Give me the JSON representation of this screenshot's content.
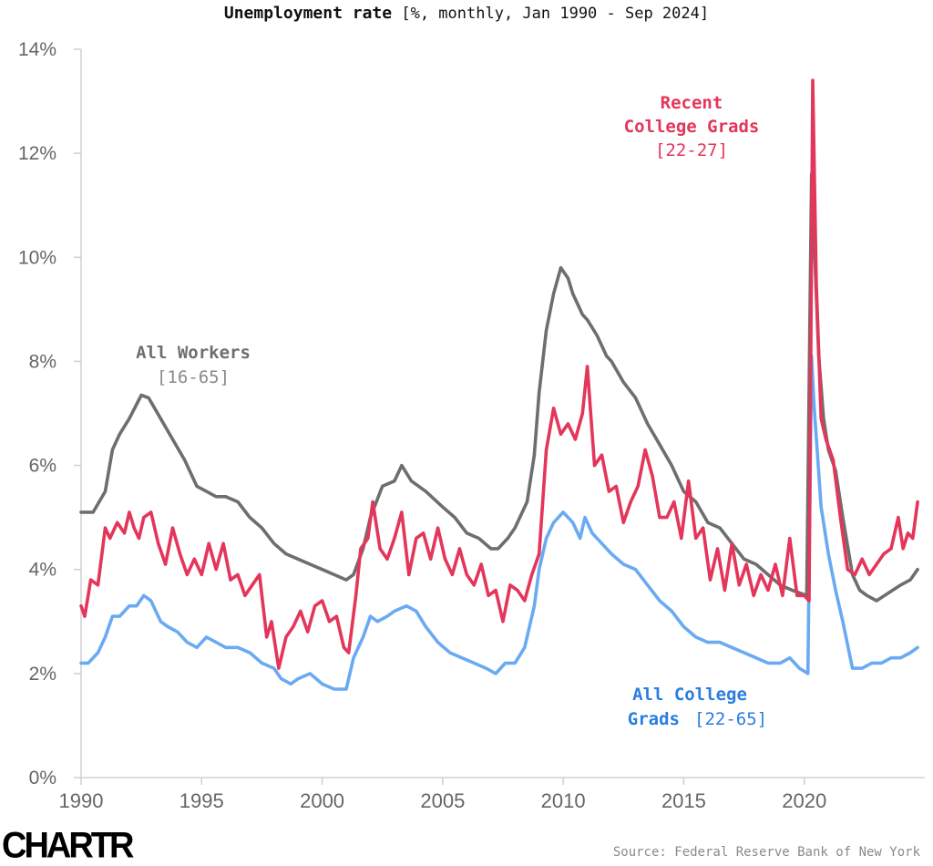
{
  "chart_data": {
    "type": "line",
    "title": "Unemployment rate",
    "subtitle": "[%, monthly, Jan 1990 - Sep 2024]",
    "xlabel": "",
    "ylabel": "",
    "xlim": [
      1990,
      2024.75
    ],
    "ylim": [
      0,
      14
    ],
    "grid": false,
    "y_ticks": [
      0,
      2,
      4,
      6,
      8,
      10,
      12,
      14
    ],
    "y_tick_labels": [
      "0%",
      "2%",
      "4%",
      "6%",
      "8%",
      "10%",
      "12%",
      "14%"
    ],
    "x_ticks": [
      1990,
      1995,
      2000,
      2005,
      2010,
      2015,
      2020
    ],
    "x_tick_labels": [
      "1990",
      "1995",
      "2000",
      "2005",
      "2010",
      "2015",
      "2020"
    ],
    "source": "Source: Federal Reserve Bank of New York",
    "brand": "CHARTR",
    "series": [
      {
        "name": "All Workers",
        "label_line1": "All Workers",
        "label_line2": "[16-65]",
        "color": "#6e6e6e",
        "x": [
          1990,
          1990.5,
          1991,
          1991.3,
          1991.6,
          1992,
          1992.5,
          1992.8,
          1993.3,
          1993.8,
          1994.3,
          1994.8,
          1995.2,
          1995.6,
          1996,
          1996.5,
          1997,
          1997.5,
          1998,
          1998.5,
          1999,
          1999.5,
          2000,
          2000.5,
          2001,
          2001.3,
          2001.7,
          2002,
          2002.5,
          2003,
          2003.3,
          2003.7,
          2004.3,
          2005,
          2005.5,
          2006,
          2006.5,
          2007,
          2007.3,
          2007.7,
          2008,
          2008.5,
          2008.8,
          2009,
          2009.3,
          2009.6,
          2009.9,
          2010.2,
          2010.4,
          2010.8,
          2011,
          2011.4,
          2011.8,
          2012,
          2012.5,
          2013,
          2013.5,
          2014,
          2014.5,
          2015,
          2015.5,
          2016,
          2016.5,
          2017,
          2017.5,
          2018,
          2018.5,
          2019,
          2019.5,
          2020.1,
          2020.3,
          2020.35,
          2020.6,
          2020.8,
          2021,
          2021.3,
          2021.6,
          2022,
          2022.3,
          2022.6,
          2023,
          2023.5,
          2024,
          2024.4,
          2024.7
        ],
        "values": [
          5.1,
          5.1,
          5.5,
          6.3,
          6.6,
          6.9,
          7.35,
          7.3,
          6.9,
          6.5,
          6.1,
          5.6,
          5.5,
          5.4,
          5.4,
          5.3,
          5.0,
          4.8,
          4.5,
          4.3,
          4.2,
          4.1,
          4.0,
          3.9,
          3.8,
          3.9,
          4.4,
          5.0,
          5.6,
          5.7,
          6.0,
          5.7,
          5.5,
          5.2,
          5.0,
          4.7,
          4.6,
          4.4,
          4.4,
          4.6,
          4.8,
          5.3,
          6.2,
          7.4,
          8.6,
          9.3,
          9.8,
          9.6,
          9.3,
          8.9,
          8.8,
          8.5,
          8.1,
          8.0,
          7.6,
          7.3,
          6.8,
          6.4,
          6.0,
          5.5,
          5.3,
          4.9,
          4.8,
          4.5,
          4.2,
          4.1,
          3.9,
          3.7,
          3.6,
          3.5,
          11.6,
          11.0,
          8.1,
          6.9,
          6.3,
          5.9,
          5.0,
          3.9,
          3.6,
          3.5,
          3.4,
          3.55,
          3.7,
          3.8,
          4.0
        ]
      },
      {
        "name": "Recent College Grads",
        "label_line1": "Recent",
        "label_line2": "College Grads",
        "label_line3": "[22-27]",
        "color": "#e3365a",
        "x": [
          1990,
          1990.15,
          1990.4,
          1990.7,
          1991,
          1991.2,
          1991.5,
          1991.8,
          1992,
          1992.2,
          1992.4,
          1992.6,
          1992.9,
          1993.2,
          1993.5,
          1993.8,
          1994.1,
          1994.4,
          1994.7,
          1995,
          1995.3,
          1995.6,
          1995.9,
          1996.2,
          1996.5,
          1996.8,
          1997.1,
          1997.4,
          1997.7,
          1997.9,
          1998.2,
          1998.5,
          1998.8,
          1999.1,
          1999.4,
          1999.7,
          2000,
          2000.3,
          2000.6,
          2000.9,
          2001.1,
          2001.4,
          2001.6,
          2001.9,
          2002.1,
          2002.4,
          2002.7,
          2003,
          2003.3,
          2003.6,
          2003.9,
          2004.2,
          2004.5,
          2004.8,
          2005.1,
          2005.4,
          2005.7,
          2006,
          2006.3,
          2006.6,
          2006.9,
          2007.2,
          2007.5,
          2007.8,
          2008.1,
          2008.4,
          2008.7,
          2009,
          2009.3,
          2009.6,
          2009.9,
          2010.2,
          2010.5,
          2010.8,
          2011.0,
          2011.3,
          2011.6,
          2011.9,
          2012.2,
          2012.5,
          2012.8,
          2013.1,
          2013.4,
          2013.7,
          2014.0,
          2014.3,
          2014.6,
          2014.9,
          2015.2,
          2015.5,
          2015.8,
          2016.1,
          2016.4,
          2016.7,
          2017,
          2017.3,
          2017.6,
          2017.9,
          2018.2,
          2018.5,
          2018.8,
          2019.1,
          2019.4,
          2019.7,
          2020.0,
          2020.2,
          2020.35,
          2020.5,
          2020.7,
          2020.9,
          2021.2,
          2021.5,
          2021.8,
          2022.1,
          2022.4,
          2022.7,
          2023,
          2023.3,
          2023.6,
          2023.9,
          2024.1,
          2024.3,
          2024.5,
          2024.7
        ],
        "values": [
          3.3,
          3.1,
          3.8,
          3.7,
          4.8,
          4.6,
          4.9,
          4.7,
          5.1,
          4.8,
          4.6,
          5.0,
          5.1,
          4.5,
          4.1,
          4.8,
          4.3,
          3.9,
          4.2,
          3.9,
          4.5,
          4.0,
          4.5,
          3.8,
          3.9,
          3.5,
          3.7,
          3.9,
          2.7,
          3.0,
          2.1,
          2.7,
          2.9,
          3.2,
          2.8,
          3.3,
          3.4,
          3.0,
          3.1,
          2.5,
          2.4,
          3.5,
          4.4,
          4.6,
          5.3,
          4.4,
          4.2,
          4.6,
          5.1,
          3.9,
          4.6,
          4.7,
          4.2,
          4.8,
          4.2,
          3.9,
          4.4,
          3.9,
          3.7,
          4.1,
          3.5,
          3.6,
          3.0,
          3.7,
          3.6,
          3.4,
          3.9,
          4.3,
          6.3,
          7.1,
          6.6,
          6.8,
          6.5,
          7.0,
          7.9,
          6.0,
          6.2,
          5.5,
          5.6,
          4.9,
          5.3,
          5.6,
          6.3,
          5.8,
          5.0,
          5.0,
          5.3,
          4.6,
          5.7,
          4.6,
          4.8,
          3.8,
          4.4,
          3.6,
          4.5,
          3.7,
          4.1,
          3.5,
          3.9,
          3.6,
          4.1,
          3.5,
          4.6,
          3.5,
          3.5,
          3.4,
          13.4,
          9.5,
          6.9,
          6.5,
          6.1,
          5.0,
          4.0,
          3.9,
          4.2,
          3.9,
          4.1,
          4.3,
          4.4,
          5.0,
          4.4,
          4.7,
          4.6,
          5.3
        ]
      },
      {
        "name": "All College Grads",
        "label_line1": "All College",
        "label_line2": "Grads",
        "label_line3": "[22-65]",
        "color": "#6aaaf2",
        "x": [
          1990,
          1990.3,
          1990.7,
          1991,
          1991.3,
          1991.6,
          1992,
          1992.3,
          1992.6,
          1992.9,
          1993.3,
          1993.6,
          1994,
          1994.4,
          1994.8,
          1995.2,
          1995.6,
          1996,
          1996.5,
          1997,
          1997.5,
          1998,
          1998.3,
          1998.7,
          1999,
          1999.5,
          2000,
          2000.5,
          2001,
          2001.3,
          2001.7,
          2002,
          2002.3,
          2002.7,
          2003,
          2003.5,
          2003.9,
          2004.3,
          2004.8,
          2005.3,
          2005.8,
          2006.3,
          2006.8,
          2007.2,
          2007.6,
          2008,
          2008.4,
          2008.8,
          2009,
          2009.3,
          2009.6,
          2010,
          2010.4,
          2010.7,
          2010.9,
          2011.2,
          2011.6,
          2012,
          2012.5,
          2013,
          2013.5,
          2014,
          2014.5,
          2015,
          2015.5,
          2016,
          2016.5,
          2017,
          2017.5,
          2018,
          2018.5,
          2019,
          2019.4,
          2019.8,
          2020.15,
          2020.3,
          2020.4,
          2020.7,
          2021,
          2021.3,
          2021.6,
          2022,
          2022.4,
          2022.8,
          2023.2,
          2023.6,
          2024,
          2024.4,
          2024.7
        ],
        "values": [
          2.2,
          2.2,
          2.4,
          2.7,
          3.1,
          3.1,
          3.3,
          3.3,
          3.5,
          3.4,
          3.0,
          2.9,
          2.8,
          2.6,
          2.5,
          2.7,
          2.6,
          2.5,
          2.5,
          2.4,
          2.2,
          2.1,
          1.9,
          1.8,
          1.9,
          2.0,
          1.8,
          1.7,
          1.7,
          2.3,
          2.7,
          3.1,
          3.0,
          3.1,
          3.2,
          3.3,
          3.2,
          2.9,
          2.6,
          2.4,
          2.3,
          2.2,
          2.1,
          2.0,
          2.2,
          2.2,
          2.5,
          3.3,
          4.0,
          4.6,
          4.9,
          5.1,
          4.9,
          4.6,
          5.0,
          4.7,
          4.5,
          4.3,
          4.1,
          4.0,
          3.7,
          3.4,
          3.2,
          2.9,
          2.7,
          2.6,
          2.6,
          2.5,
          2.4,
          2.3,
          2.2,
          2.2,
          2.3,
          2.1,
          2.0,
          8.1,
          7.2,
          5.2,
          4.3,
          3.6,
          3.0,
          2.1,
          2.1,
          2.2,
          2.2,
          2.3,
          2.3,
          2.4,
          2.5
        ]
      }
    ]
  }
}
